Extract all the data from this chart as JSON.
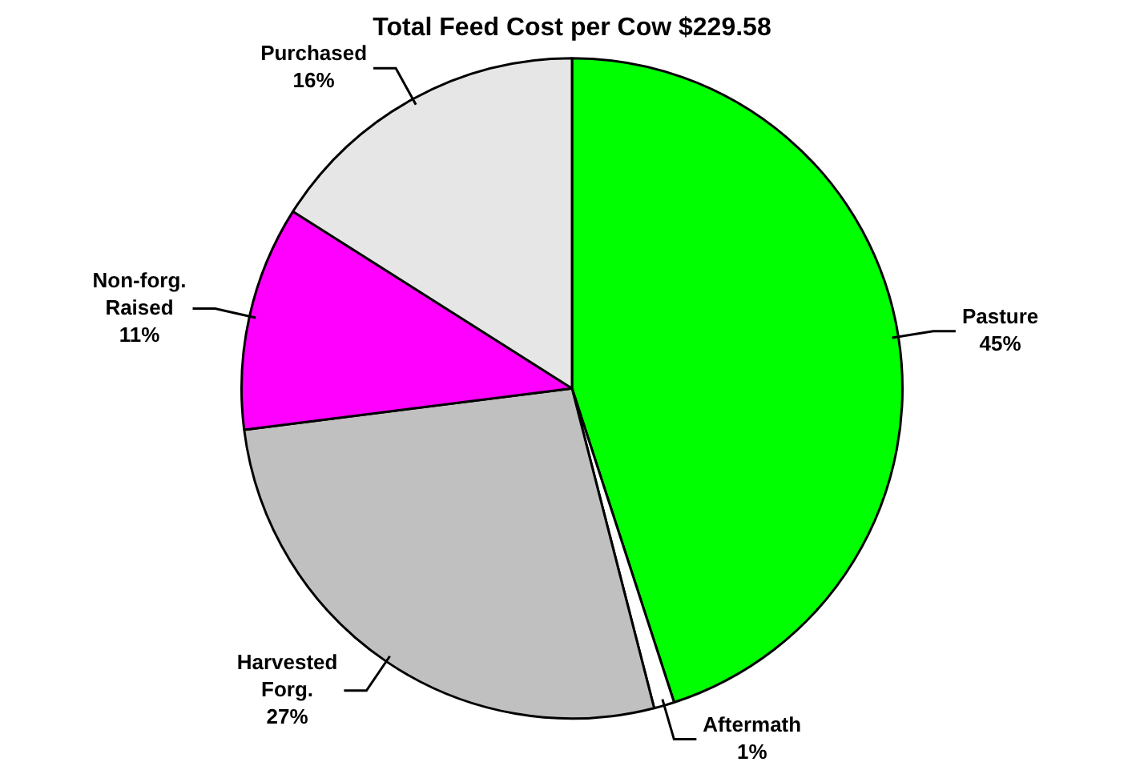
{
  "chart_data": {
    "type": "pie",
    "title": "Total Feed Cost per Cow $229.58",
    "categories": [
      "Pasture",
      "Aftermath",
      "Harvested Forg.",
      "Non-forg. Raised",
      "Purchased"
    ],
    "values": [
      45,
      1,
      27,
      11,
      16
    ],
    "colors": [
      "#00ff00",
      "#ffffff",
      "#c0c0c0",
      "#ff00ff",
      "#e6e6e6"
    ],
    "value_labels": [
      "45%",
      "1%",
      "27%",
      "11%",
      "16%"
    ],
    "legend": false
  }
}
